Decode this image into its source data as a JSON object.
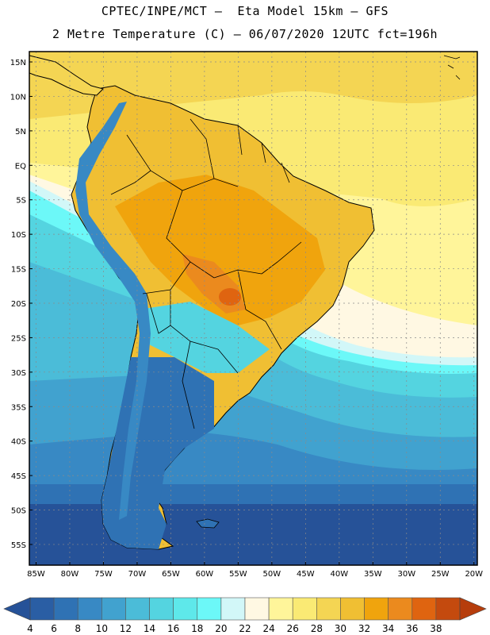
{
  "header": {
    "line1": "CPTEC/INPE/MCT –  Eta Model 15km – GFS",
    "line2": "2 Metre Temperature (C) – 06/07/2020 12UTC fct=196h"
  },
  "map": {
    "lat_labels": [
      "15N",
      "10N",
      "5N",
      "EQ",
      "5S",
      "10S",
      "15S",
      "20S",
      "25S",
      "30S",
      "35S",
      "40S",
      "45S",
      "50S",
      "55S"
    ],
    "lat_values": [
      15,
      10,
      5,
      0,
      -5,
      -10,
      -15,
      -20,
      -25,
      -30,
      -35,
      -40,
      -45,
      -50,
      -55
    ],
    "lon_labels": [
      "85W",
      "80W",
      "75W",
      "70W",
      "65W",
      "60W",
      "55W",
      "50W",
      "45W",
      "40W",
      "35W",
      "30W",
      "25W",
      "20W"
    ],
    "lon_values": [
      -85,
      -80,
      -75,
      -70,
      -65,
      -60,
      -55,
      -50,
      -45,
      -40,
      -35,
      -30,
      -25,
      -20
    ],
    "lat_range": [
      -58,
      16.5
    ],
    "lon_range": [
      -86,
      -19.5
    ]
  },
  "colorbar": {
    "labels": [
      "4",
      "6",
      "8",
      "10",
      "12",
      "14",
      "16",
      "18",
      "20",
      "22",
      "24",
      "26",
      "28",
      "30",
      "32",
      "34",
      "36",
      "38"
    ],
    "values": [
      4,
      6,
      8,
      10,
      12,
      14,
      16,
      18,
      20,
      22,
      24,
      26,
      28,
      30,
      32,
      34,
      36,
      38
    ],
    "colors": [
      "#2a5ea4",
      "#2f72b4",
      "#3889c4",
      "#41a2cf",
      "#4bbcd8",
      "#54d4e0",
      "#5ee8ea",
      "#6cf8f8",
      "#d2f7f8",
      "#fff8e3",
      "#fff59a",
      "#faea74",
      "#f4d553",
      "#f0bf33",
      "#f0a40d",
      "#eb8a1e",
      "#df6410",
      "#c44a0e"
    ],
    "below_color": "#265298",
    "above_color": "#b63d0c"
  }
}
